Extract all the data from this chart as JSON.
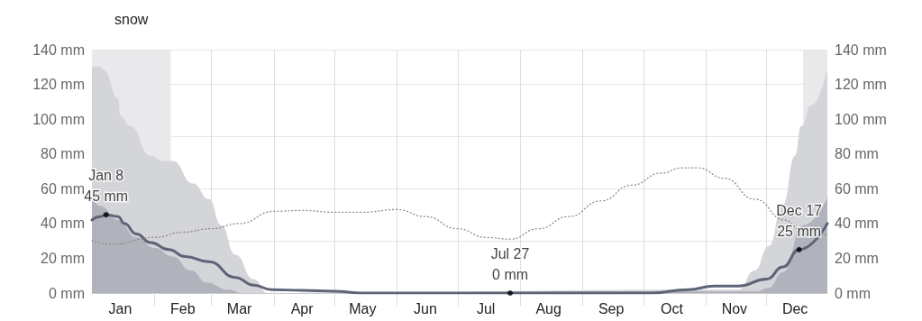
{
  "chart_data": {
    "type": "line",
    "x": [
      "--01-01",
      "--01-05",
      "--01-08",
      "--01-14",
      "--01-17",
      "--01-23",
      "--01-30",
      "--02-08",
      "--02-16",
      "--02-28",
      "--03-13",
      "--03-22",
      "--03-31",
      "--04-15",
      "--05-01",
      "--05-15",
      "--06-01",
      "--07-01",
      "--07-27",
      "--09-01",
      "--10-05",
      "--10-23",
      "--11-05",
      "--11-17",
      "--12-01",
      "--12-09",
      "--12-17",
      "--12-31"
    ],
    "series": [
      {
        "type": "area",
        "color": "#d4d5d9",
        "x": [
          "--01-01",
          "--01-05",
          "--01-07",
          "--01-14",
          "--01-15",
          "--01-20",
          "--01-30",
          "--02-05",
          "--02-10",
          "--02-20",
          "--02-28",
          "--03-06",
          "--03-13",
          "--03-22",
          "--03-29",
          "--11-17",
          "--11-25",
          "--12-02",
          "--12-09",
          "--12-15",
          "--12-18",
          "--12-23",
          "--12-31"
        ],
        "values": [
          130,
          130,
          128,
          112,
          102,
          96,
          79,
          76,
          76,
          63,
          54,
          39,
          22,
          8,
          0,
          2,
          13,
          27,
          51,
          79,
          96,
          108,
          129
        ]
      },
      {
        "type": "area",
        "color": "#b1b3bc",
        "x": [
          "--01-01",
          "--01-05",
          "--01-14",
          "--01-23",
          "--02-01",
          "--02-10",
          "--02-19",
          "--02-27",
          "--03-09",
          "--03-17",
          "--11-26",
          "--12-02",
          "--12-09",
          "--12-19",
          "--12-31"
        ],
        "values": [
          56,
          50,
          42,
          32,
          26,
          21,
          13,
          6,
          2,
          0,
          1,
          3,
          12,
          39,
          55
        ]
      },
      {
        "color": "#5f6377",
        "values": [
          42,
          44,
          45,
          44,
          40,
          34,
          29,
          25,
          21,
          18,
          9,
          4.5,
          2,
          1.5,
          1,
          0,
          0,
          0,
          0,
          0,
          0,
          2,
          4,
          4,
          8,
          15,
          25,
          40
        ]
      },
      {
        "type": "line",
        "color": "#8a8a8a",
        "line_style": "dotted",
        "x": [
          "--01-01",
          "--01-11",
          "--02-01",
          "--02-15",
          "--03-01",
          "--03-15",
          "--04-01",
          "--04-15",
          "--05-01",
          "--05-15",
          "--06-01",
          "--06-15",
          "--07-01",
          "--07-15",
          "--07-27",
          "--08-10",
          "--08-25",
          "--09-10",
          "--09-25",
          "--10-10",
          "--10-20",
          "--10-28",
          "--11-10",
          "--11-25",
          "--12-10",
          "--12-17",
          "--12-31"
        ],
        "values": [
          30,
          28,
          32,
          35,
          37,
          40,
          47,
          47.5,
          46.5,
          46.5,
          48,
          44,
          37,
          32,
          31,
          37,
          44,
          53,
          62,
          69,
          72,
          72,
          66,
          54,
          42,
          37,
          33
        ]
      }
    ],
    "xlim": [
      "--01-01",
      "--12-31"
    ],
    "xticks": [
      {
        "value": "--01-15",
        "label": "Jan"
      },
      {
        "value": "--02-01",
        "label": null
      },
      {
        "value": "--02-15",
        "label": "Feb"
      },
      {
        "value": "--03-01",
        "label": null
      },
      {
        "value": "--03-15",
        "label": "Mar"
      },
      {
        "value": "--04-01",
        "label": null
      },
      {
        "value": "--04-15",
        "label": "Apr"
      },
      {
        "value": "--05-01",
        "label": null
      },
      {
        "value": "--05-15",
        "label": "May"
      },
      {
        "value": "--06-01",
        "label": null
      },
      {
        "value": "--06-15",
        "label": "Jun"
      },
      {
        "value": "--07-01",
        "label": null
      },
      {
        "value": "--07-15",
        "label": "Jul"
      },
      {
        "value": "--08-01",
        "label": null
      },
      {
        "value": "--08-15",
        "label": "Aug"
      },
      {
        "value": "--09-01",
        "label": null
      },
      {
        "value": "--09-15",
        "label": "Sep"
      },
      {
        "value": "--10-01",
        "label": null
      },
      {
        "value": "--10-15",
        "label": "Oct"
      },
      {
        "value": "--11-01",
        "label": null
      },
      {
        "value": "--11-15",
        "label": "Nov"
      },
      {
        "value": "--12-01",
        "label": null
      },
      {
        "value": "--12-15",
        "label": "Dec"
      }
    ],
    "ylim": [
      0,
      140
    ],
    "yticks": [
      {
        "value": 0,
        "label": "0 mm"
      },
      {
        "value": 20,
        "label": "20 mm"
      },
      {
        "value": 40,
        "label": "40 mm"
      },
      {
        "value": 60,
        "label": "60 mm"
      },
      {
        "value": 80,
        "label": "80 mm"
      },
      {
        "value": 100,
        "label": "100 mm"
      },
      {
        "value": 120,
        "label": "120 mm"
      },
      {
        "value": 140,
        "label": "140 mm"
      }
    ],
    "y2lim": [
      0,
      140
    ],
    "y2ticks": [
      {
        "value": 0,
        "label": "0 mm"
      },
      {
        "value": 20,
        "label": "20 mm"
      },
      {
        "value": 40,
        "label": "40 mm"
      },
      {
        "value": 60,
        "label": "60 mm"
      },
      {
        "value": 80,
        "label": "80 mm"
      },
      {
        "value": 100,
        "label": "100 mm"
      },
      {
        "value": 120,
        "label": "120 mm"
      },
      {
        "value": 140,
        "label": "140 mm"
      }
    ],
    "bands": [
      {
        "axis": "x",
        "from": "--01-01",
        "to": "--02-09",
        "label": "snow",
        "color": "#e9e9ec"
      },
      {
        "axis": "x",
        "from": "--12-19",
        "to": "--12-31",
        "color": "#e9e9ec"
      }
    ],
    "annotations": [
      {
        "text": "Jan 8\n45 mm",
        "x": "--01-08",
        "y": 45
      },
      {
        "text": "Jul 27\n0 mm",
        "x": "--07-27",
        "y": 0
      },
      {
        "text": "Dec 17\n25 mm",
        "x": "--12-17",
        "y": 25
      }
    ],
    "grid": true,
    "marker": "none"
  }
}
